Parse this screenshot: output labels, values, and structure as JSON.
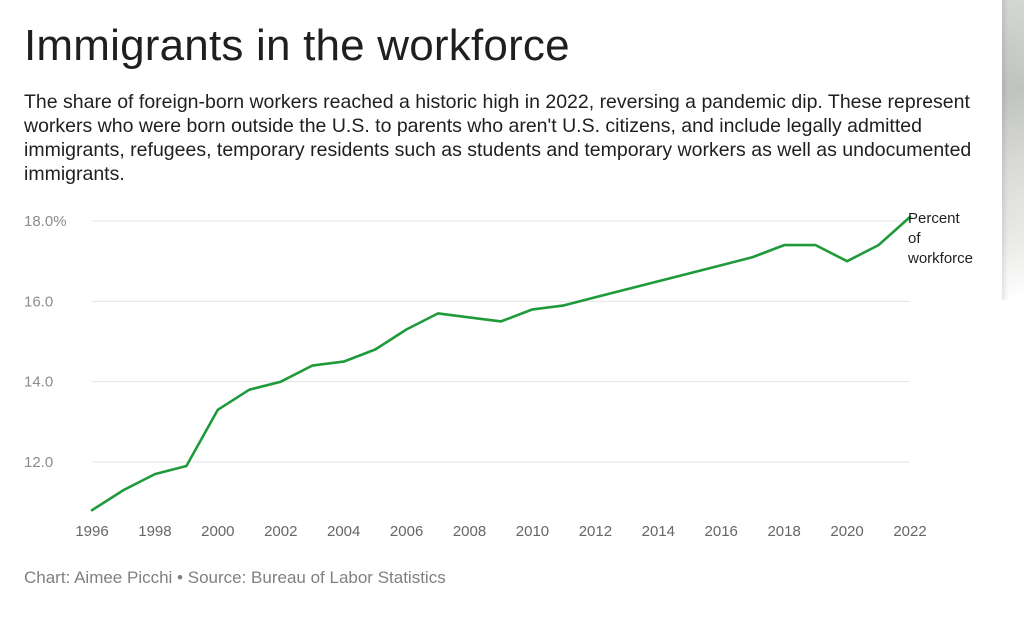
{
  "title": "Immigrants in the workforce",
  "subtitle": "The share of foreign-born workers reached a historic high in 2022, reversing a pandemic dip. These represent workers who were born outside the U.S. to parents who aren't U.S. citizens, and include legally admitted immigrants, refugees, temporary residents such as students and temporary workers as well as undocumented immigrants.",
  "credit": "Chart: Aimee Picchi • Source: Bureau of Labor Statistics",
  "colors": {
    "line": "#1f9a3a",
    "grid": "#e3e3e3"
  },
  "chart_data": {
    "type": "line",
    "title": "Immigrants in the workforce",
    "xlabel": "",
    "ylabel": "",
    "x": [
      1996,
      1997,
      1998,
      1999,
      2000,
      2001,
      2002,
      2003,
      2004,
      2005,
      2006,
      2007,
      2008,
      2009,
      2010,
      2011,
      2012,
      2013,
      2014,
      2015,
      2016,
      2017,
      2018,
      2019,
      2020,
      2021,
      2022
    ],
    "series": [
      {
        "name": "Percent of workforce",
        "label_lines": [
          "Percent",
          "of",
          "workforce"
        ],
        "values": [
          10.8,
          11.3,
          11.7,
          11.9,
          13.3,
          13.8,
          14.0,
          14.4,
          14.5,
          14.8,
          15.3,
          15.7,
          15.6,
          15.5,
          15.8,
          15.9,
          16.1,
          16.3,
          16.5,
          16.7,
          16.9,
          17.1,
          17.4,
          17.4,
          17.0,
          17.4,
          18.1
        ]
      }
    ],
    "y_ticks": [
      12.0,
      14.0,
      16.0,
      18.0
    ],
    "y_tick_labels": [
      "12.0",
      "14.0",
      "16.0",
      "18.0%"
    ],
    "x_ticks": [
      1996,
      1998,
      2000,
      2002,
      2004,
      2006,
      2008,
      2010,
      2012,
      2014,
      2016,
      2018,
      2020,
      2022
    ],
    "x_tick_labels": [
      "1996",
      "1998",
      "2000",
      "2002",
      "2004",
      "2006",
      "2008",
      "2010",
      "2012",
      "2014",
      "2016",
      "2018",
      "2020",
      "2022"
    ],
    "xlim": [
      1996,
      2022
    ],
    "ylim": [
      10.8,
      18.0
    ],
    "grid": true,
    "legend": "inline-right"
  }
}
